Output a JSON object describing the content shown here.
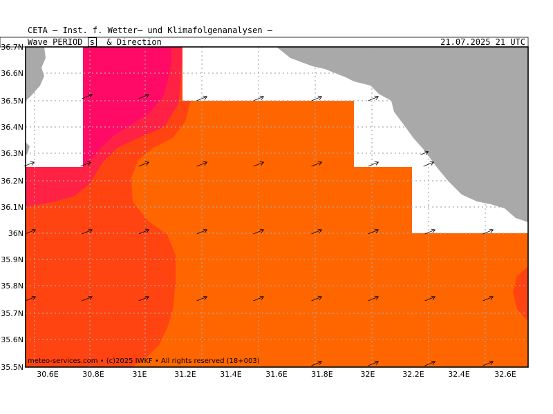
{
  "header": {
    "title": "CETA – Inst. f. Wetter– und Klimafolgenanalysen –",
    "product_prefix": "Wave_PERIOD",
    "unit": "s",
    "product_suffix": "_&_Direction",
    "valid_time": "21.07.2025 21 UTC"
  },
  "footer": {
    "credit": "meteo-services.com • (c)2025 IWKF • All rights reserved (18+003)"
  },
  "map": {
    "lon_range": [
      30.5,
      32.72
    ],
    "lat_range": [
      35.5,
      36.7
    ],
    "lon_labels": [
      "30.6E",
      "30.8E",
      "31E",
      "31.2E",
      "31.4E",
      "31.6E",
      "31.8E",
      "32E",
      "32.2E",
      "32.4E",
      "32.6E"
    ],
    "lat_labels": [
      "35.5N",
      "35.6N",
      "35.7N",
      "35.8N",
      "35.9N",
      "36N",
      "36.1N",
      "36.2N",
      "36.3N",
      "36.4N",
      "36.5N",
      "36.6N",
      "36.7N"
    ],
    "colors": {
      "land": "#a9a9a9",
      "nodata": "#ffffff",
      "period_high": "#ff0a66",
      "period_mid_high": "#ff2244",
      "period_mid": "#ff4411",
      "period_low": "#ff6600",
      "grid": "#aaaaaa"
    },
    "arrow_direction": "east-northeast",
    "arrow_icon": "arrow-icon"
  }
}
